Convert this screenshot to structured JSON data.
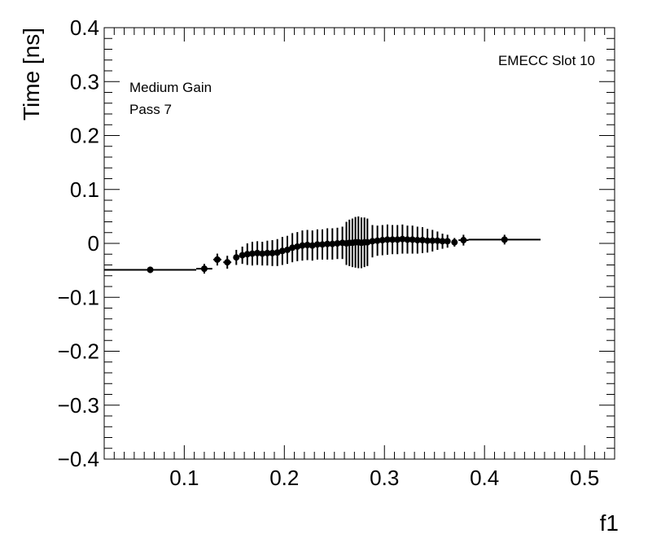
{
  "chart_data": {
    "type": "scatter",
    "title": "",
    "xlabel": "f1",
    "ylabel": "Time [ns]",
    "xlim": [
      0.02,
      0.53
    ],
    "ylim": [
      -0.4,
      0.4
    ],
    "grid": false,
    "legend": "none",
    "annotations": {
      "slot": "EMECC Slot 10",
      "gain": "Medium Gain",
      "pass": "Pass 7"
    },
    "xticks": [
      {
        "value": 0.1,
        "label": "0.1"
      },
      {
        "value": 0.2,
        "label": "0.2"
      },
      {
        "value": 0.3,
        "label": "0.3"
      },
      {
        "value": 0.4,
        "label": "0.4"
      },
      {
        "value": 0.5,
        "label": "0.5"
      }
    ],
    "yticks": [
      {
        "value": 0.4,
        "label": "0.4"
      },
      {
        "value": 0.3,
        "label": "0.3"
      },
      {
        "value": 0.2,
        "label": "0.2"
      },
      {
        "value": 0.1,
        "label": "0.1"
      },
      {
        "value": 0.0,
        "label": "0"
      },
      {
        "value": -0.1,
        "label": "−0.1"
      },
      {
        "value": -0.2,
        "label": "−0.2"
      },
      {
        "value": -0.3,
        "label": "−0.3"
      },
      {
        "value": -0.4,
        "label": "−0.4"
      }
    ],
    "points": [
      {
        "x": 0.066,
        "y": -0.049,
        "xerr": 0.046,
        "yerr": 0.006
      },
      {
        "x": 0.12,
        "y": -0.047,
        "xerr": 0.008,
        "yerr": 0.009
      },
      {
        "x": 0.133,
        "y": -0.03,
        "xerr": 0.004,
        "yerr": 0.011
      },
      {
        "x": 0.143,
        "y": -0.035,
        "xerr": 0.004,
        "yerr": 0.012
      },
      {
        "x": 0.152,
        "y": -0.026,
        "xerr": 0.003,
        "yerr": 0.014
      },
      {
        "x": 0.158,
        "y": -0.022,
        "xerr": 0.002,
        "yerr": 0.016
      },
      {
        "x": 0.163,
        "y": -0.02,
        "xerr": 0.002,
        "yerr": 0.02
      },
      {
        "x": 0.168,
        "y": -0.019,
        "xerr": 0.002,
        "yerr": 0.022
      },
      {
        "x": 0.173,
        "y": -0.018,
        "xerr": 0.002,
        "yerr": 0.022
      },
      {
        "x": 0.178,
        "y": -0.019,
        "xerr": 0.002,
        "yerr": 0.022
      },
      {
        "x": 0.183,
        "y": -0.018,
        "xerr": 0.002,
        "yerr": 0.023
      },
      {
        "x": 0.188,
        "y": -0.018,
        "xerr": 0.002,
        "yerr": 0.024
      },
      {
        "x": 0.193,
        "y": -0.017,
        "xerr": 0.002,
        "yerr": 0.025
      },
      {
        "x": 0.198,
        "y": -0.014,
        "xerr": 0.002,
        "yerr": 0.026
      },
      {
        "x": 0.203,
        "y": -0.012,
        "xerr": 0.002,
        "yerr": 0.026
      },
      {
        "x": 0.208,
        "y": -0.008,
        "xerr": 0.002,
        "yerr": 0.027
      },
      {
        "x": 0.213,
        "y": -0.006,
        "xerr": 0.002,
        "yerr": 0.027
      },
      {
        "x": 0.218,
        "y": -0.004,
        "xerr": 0.002,
        "yerr": 0.028
      },
      {
        "x": 0.223,
        "y": -0.003,
        "xerr": 0.002,
        "yerr": 0.028
      },
      {
        "x": 0.228,
        "y": -0.004,
        "xerr": 0.002,
        "yerr": 0.028
      },
      {
        "x": 0.233,
        "y": -0.002,
        "xerr": 0.002,
        "yerr": 0.028
      },
      {
        "x": 0.238,
        "y": -0.002,
        "xerr": 0.002,
        "yerr": 0.028
      },
      {
        "x": 0.243,
        "y": -0.001,
        "xerr": 0.002,
        "yerr": 0.029
      },
      {
        "x": 0.248,
        "y": -0.001,
        "xerr": 0.002,
        "yerr": 0.029
      },
      {
        "x": 0.253,
        "y": 0.0,
        "xerr": 0.002,
        "yerr": 0.029
      },
      {
        "x": 0.258,
        "y": 0.001,
        "xerr": 0.002,
        "yerr": 0.03
      },
      {
        "x": 0.262,
        "y": 0.0,
        "xerr": 0.001,
        "yerr": 0.04
      },
      {
        "x": 0.265,
        "y": 0.001,
        "xerr": 0.001,
        "yerr": 0.043
      },
      {
        "x": 0.268,
        "y": 0.001,
        "xerr": 0.001,
        "yerr": 0.045
      },
      {
        "x": 0.271,
        "y": 0.002,
        "xerr": 0.001,
        "yerr": 0.047
      },
      {
        "x": 0.274,
        "y": 0.002,
        "xerr": 0.001,
        "yerr": 0.048
      },
      {
        "x": 0.277,
        "y": 0.001,
        "xerr": 0.001,
        "yerr": 0.047
      },
      {
        "x": 0.28,
        "y": 0.002,
        "xerr": 0.001,
        "yerr": 0.046
      },
      {
        "x": 0.283,
        "y": 0.002,
        "xerr": 0.001,
        "yerr": 0.044
      },
      {
        "x": 0.288,
        "y": 0.004,
        "xerr": 0.002,
        "yerr": 0.03
      },
      {
        "x": 0.293,
        "y": 0.005,
        "xerr": 0.002,
        "yerr": 0.028
      },
      {
        "x": 0.298,
        "y": 0.006,
        "xerr": 0.002,
        "yerr": 0.028
      },
      {
        "x": 0.303,
        "y": 0.007,
        "xerr": 0.002,
        "yerr": 0.028
      },
      {
        "x": 0.308,
        "y": 0.007,
        "xerr": 0.002,
        "yerr": 0.027
      },
      {
        "x": 0.313,
        "y": 0.007,
        "xerr": 0.002,
        "yerr": 0.027
      },
      {
        "x": 0.318,
        "y": 0.008,
        "xerr": 0.002,
        "yerr": 0.027
      },
      {
        "x": 0.323,
        "y": 0.007,
        "xerr": 0.002,
        "yerr": 0.026
      },
      {
        "x": 0.328,
        "y": 0.007,
        "xerr": 0.002,
        "yerr": 0.026
      },
      {
        "x": 0.333,
        "y": 0.006,
        "xerr": 0.002,
        "yerr": 0.025
      },
      {
        "x": 0.338,
        "y": 0.006,
        "xerr": 0.002,
        "yerr": 0.024
      },
      {
        "x": 0.343,
        "y": 0.005,
        "xerr": 0.002,
        "yerr": 0.022
      },
      {
        "x": 0.348,
        "y": 0.005,
        "xerr": 0.002,
        "yerr": 0.02
      },
      {
        "x": 0.353,
        "y": 0.005,
        "xerr": 0.002,
        "yerr": 0.017
      },
      {
        "x": 0.358,
        "y": 0.004,
        "xerr": 0.002,
        "yerr": 0.014
      },
      {
        "x": 0.363,
        "y": 0.004,
        "xerr": 0.002,
        "yerr": 0.012
      },
      {
        "x": 0.37,
        "y": 0.002,
        "xerr": 0.003,
        "yerr": 0.008
      },
      {
        "x": 0.379,
        "y": 0.006,
        "xerr": 0.005,
        "yerr": 0.01
      },
      {
        "x": 0.42,
        "y": 0.007,
        "xerr": 0.036,
        "yerr": 0.009
      }
    ]
  }
}
